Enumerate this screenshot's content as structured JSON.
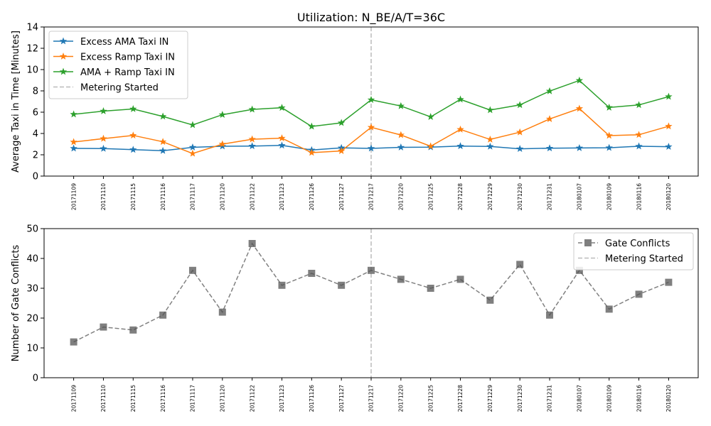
{
  "chart_data": [
    {
      "type": "line",
      "title": "Utilization: N_BE/A/T=36C",
      "xlabel": "",
      "ylabel": "Average Taxi in Time [Minutes]",
      "categories": [
        "20171109",
        "20171110",
        "20171115",
        "20171116",
        "20171117",
        "20171120",
        "20171122",
        "20171123",
        "20171126",
        "20171127",
        "20171217",
        "20171220",
        "20171225",
        "20171228",
        "20171229",
        "20171230",
        "20171231",
        "20180107",
        "20180109",
        "20180116",
        "20180120"
      ],
      "ylim": [
        0,
        14
      ],
      "yticks": [
        0,
        2,
        4,
        6,
        8,
        10,
        12,
        14
      ],
      "grid": false,
      "legend_position": "top-left",
      "series": [
        {
          "name": "Excess AMA Taxi IN",
          "color": "#1f77b4",
          "marker": "star",
          "linestyle": "solid",
          "values": [
            2.6,
            2.58,
            2.48,
            2.38,
            2.7,
            2.8,
            2.82,
            2.88,
            2.45,
            2.65,
            2.6,
            2.7,
            2.72,
            2.82,
            2.78,
            2.56,
            2.62,
            2.64,
            2.66,
            2.8,
            2.76
          ]
        },
        {
          "name": "Excess Ramp Taxi IN",
          "color": "#ff7f0e",
          "marker": "star",
          "linestyle": "solid",
          "values": [
            3.2,
            3.52,
            3.82,
            3.22,
            2.12,
            3.0,
            3.46,
            3.56,
            2.2,
            2.36,
            4.58,
            3.86,
            2.8,
            4.38,
            3.44,
            4.12,
            5.36,
            6.34,
            3.8,
            3.88,
            4.68
          ]
        },
        {
          "name": "AMA + Ramp Taxi IN",
          "color": "#2ca02c",
          "marker": "star",
          "linestyle": "solid",
          "values": [
            5.8,
            6.1,
            6.3,
            5.6,
            4.8,
            5.76,
            6.26,
            6.42,
            4.66,
            5.0,
            7.16,
            6.58,
            5.56,
            7.2,
            6.2,
            6.68,
            7.98,
            8.98,
            6.44,
            6.68,
            7.46
          ]
        }
      ],
      "markers_vline": {
        "label": "Metering Started",
        "category": "20171217",
        "color": "#bbbbbb",
        "linestyle": "dashed"
      }
    },
    {
      "type": "line",
      "title": "",
      "xlabel": "",
      "ylabel": "Number of Gate Conflicts",
      "categories": [
        "20171109",
        "20171110",
        "20171115",
        "20171116",
        "20171117",
        "20171120",
        "20171122",
        "20171123",
        "20171126",
        "20171127",
        "20171217",
        "20171220",
        "20171225",
        "20171228",
        "20171229",
        "20171230",
        "20171231",
        "20180107",
        "20180109",
        "20180116",
        "20180120"
      ],
      "ylim": [
        0,
        50
      ],
      "yticks": [
        0,
        10,
        20,
        30,
        40,
        50
      ],
      "grid": false,
      "legend_position": "top-right",
      "series": [
        {
          "name": "Gate Conflicts",
          "color": "#555555",
          "marker": "square",
          "linestyle": "dashed",
          "values": [
            12,
            17,
            16,
            21,
            36,
            22,
            45,
            31,
            35,
            31,
            36,
            33,
            30,
            33,
            26,
            38,
            21,
            36,
            23,
            28,
            32
          ]
        }
      ],
      "markers_vline": {
        "label": "Metering Started",
        "category": "20171217",
        "color": "#bbbbbb",
        "linestyle": "dashed"
      }
    }
  ]
}
